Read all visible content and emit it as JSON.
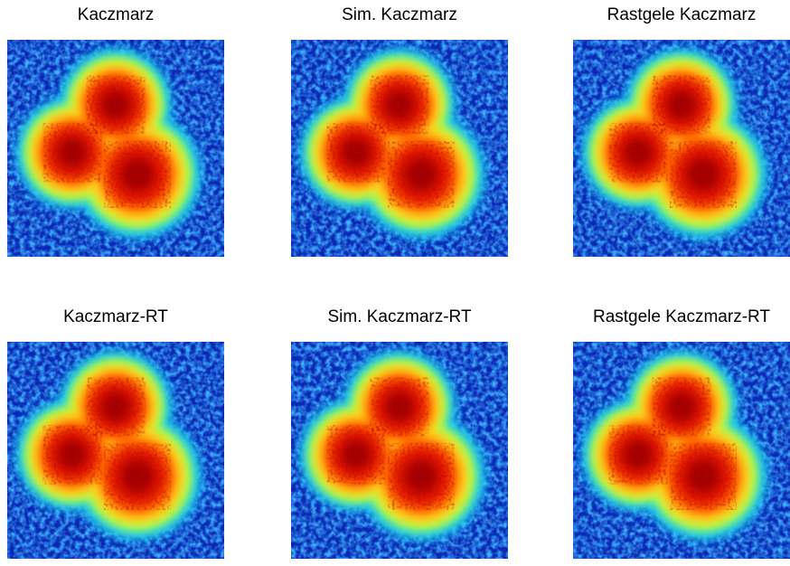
{
  "panels": [
    {
      "title": "Kaczmarz"
    },
    {
      "title": "Sim. Kaczmarz"
    },
    {
      "title": "Rastgele Kaczmarz"
    },
    {
      "title": "Kaczmarz-RT"
    },
    {
      "title": "Sim. Kaczmarz-RT"
    },
    {
      "title": "Rastgele Kaczmarz-RT"
    }
  ]
}
